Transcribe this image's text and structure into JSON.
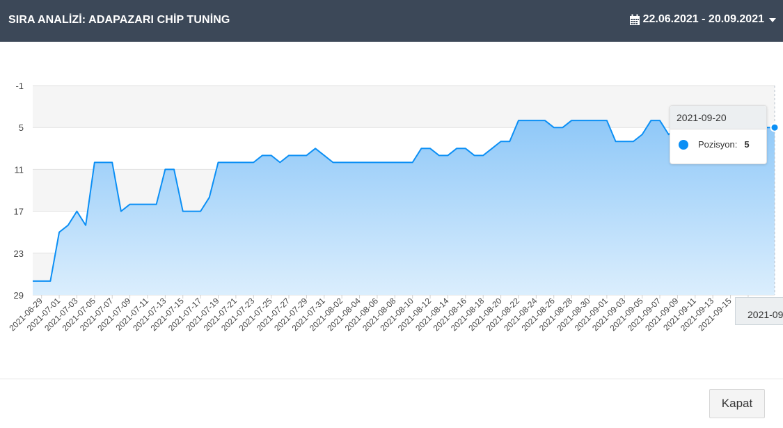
{
  "header": {
    "title": "SIRA ANALİZİ: ADAPAZARI CHİP TUNİNG",
    "date_range": "22.06.2021 - 20.09.2021"
  },
  "footer": {
    "close_label": "Kapat"
  },
  "tooltip": {
    "date": "2021-09-20",
    "series_name": "Pozisyon:",
    "value": "5"
  },
  "xaxis_tooltip": "2021-09",
  "colors": {
    "header_bg": "#3c4858",
    "series": "#0b8ff5",
    "fill_top": "#8fc8f8",
    "fill_bottom": "#dbeefd"
  },
  "chart_data": {
    "type": "area",
    "title": "",
    "xlabel": "",
    "ylabel": "",
    "reversed_y": true,
    "ylim": [
      -1,
      29
    ],
    "y_ticks": [
      -1,
      5,
      11,
      17,
      23,
      29
    ],
    "grid": true,
    "x_tick_labels": [
      "2021-06-29",
      "2021-07-01",
      "2021-07-03",
      "2021-07-05",
      "2021-07-07",
      "2021-07-09",
      "2021-07-11",
      "2021-07-13",
      "2021-07-15",
      "2021-07-17",
      "2021-07-19",
      "2021-07-21",
      "2021-07-23",
      "2021-07-25",
      "2021-07-27",
      "2021-07-29",
      "2021-07-31",
      "2021-08-02",
      "2021-08-04",
      "2021-08-06",
      "2021-08-08",
      "2021-08-10",
      "2021-08-12",
      "2021-08-14",
      "2021-08-16",
      "2021-08-18",
      "2021-08-20",
      "2021-08-22",
      "2021-08-24",
      "2021-08-26",
      "2021-08-28",
      "2021-08-30",
      "2021-09-01",
      "2021-09-03",
      "2021-09-05",
      "2021-09-07",
      "2021-09-09",
      "2021-09-11",
      "2021-09-13",
      "2021-09-15",
      "202"
    ],
    "series": [
      {
        "name": "Pozisyon",
        "x": [
          "2021-06-28",
          "2021-06-29",
          "2021-06-30",
          "2021-07-01",
          "2021-07-02",
          "2021-07-03",
          "2021-07-04",
          "2021-07-05",
          "2021-07-06",
          "2021-07-07",
          "2021-07-08",
          "2021-07-09",
          "2021-07-10",
          "2021-07-11",
          "2021-07-12",
          "2021-07-13",
          "2021-07-14",
          "2021-07-15",
          "2021-07-16",
          "2021-07-17",
          "2021-07-18",
          "2021-07-19",
          "2021-07-20",
          "2021-07-21",
          "2021-07-22",
          "2021-07-23",
          "2021-07-24",
          "2021-07-25",
          "2021-07-26",
          "2021-07-27",
          "2021-07-28",
          "2021-07-29",
          "2021-07-30",
          "2021-07-31",
          "2021-08-01",
          "2021-08-02",
          "2021-08-03",
          "2021-08-04",
          "2021-08-05",
          "2021-08-06",
          "2021-08-07",
          "2021-08-08",
          "2021-08-09",
          "2021-08-10",
          "2021-08-11",
          "2021-08-12",
          "2021-08-13",
          "2021-08-14",
          "2021-08-15",
          "2021-08-16",
          "2021-08-17",
          "2021-08-18",
          "2021-08-19",
          "2021-08-20",
          "2021-08-21",
          "2021-08-22",
          "2021-08-23",
          "2021-08-24",
          "2021-08-25",
          "2021-08-26",
          "2021-08-27",
          "2021-08-28",
          "2021-08-29",
          "2021-08-30",
          "2021-08-31",
          "2021-09-01",
          "2021-09-02",
          "2021-09-03",
          "2021-09-04",
          "2021-09-05",
          "2021-09-06",
          "2021-09-07",
          "2021-09-08",
          "2021-09-09",
          "2021-09-10",
          "2021-09-11",
          "2021-09-12",
          "2021-09-13",
          "2021-09-14",
          "2021-09-15",
          "2021-09-16",
          "2021-09-17",
          "2021-09-18",
          "2021-09-19",
          "2021-09-20"
        ],
        "values": [
          27,
          27,
          27,
          20,
          19,
          17,
          19,
          10,
          10,
          10,
          17,
          16,
          16,
          16,
          16,
          11,
          11,
          17,
          17,
          17,
          15,
          10,
          10,
          10,
          10,
          10,
          9,
          9,
          10,
          9,
          9,
          9,
          8,
          9,
          10,
          10,
          10,
          10,
          10,
          10,
          10,
          10,
          10,
          10,
          8,
          8,
          9,
          9,
          8,
          8,
          9,
          9,
          8,
          7,
          7,
          4,
          4,
          4,
          4,
          5,
          5,
          4,
          4,
          4,
          4,
          4,
          7,
          7,
          7,
          6,
          4,
          4,
          6,
          5,
          5,
          5,
          5,
          5,
          5,
          5,
          5,
          5,
          5,
          5,
          5
        ]
      }
    ]
  }
}
